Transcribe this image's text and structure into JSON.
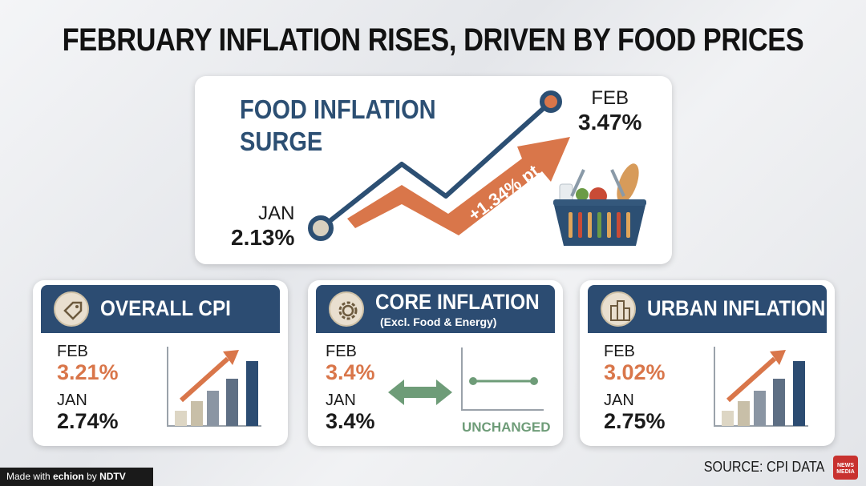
{
  "title": "FEBRUARY INFLATION RISES, DRIVEN BY FOOD PRICES",
  "food": {
    "title_line1": "FOOD INFLATION",
    "title_line2": "SURGE",
    "jan_label": "JAN",
    "jan_value": "2.13%",
    "feb_label": "FEB",
    "feb_value": "3.47%",
    "change": "+1.34% pt",
    "icon": "grocery-basket-icon"
  },
  "cards": [
    {
      "title": "OVERALL CPI",
      "icon": "price-tag-icon",
      "feb_label": "FEB",
      "feb_value": "3.21%",
      "jan_label": "JAN",
      "jan_value": "2.74%"
    },
    {
      "title": "CORE INFLATION",
      "subtitle": "(Excl. Food & Energy)",
      "icon": "gear-icon",
      "feb_label": "FEB",
      "feb_value": "3.4%",
      "jan_label": "JAN",
      "jan_value": "3.4%",
      "status": "UNCHANGED"
    },
    {
      "title": "URBAN INFLATION",
      "icon": "city-buildings-icon",
      "feb_label": "FEB",
      "feb_value": "3.02%",
      "jan_label": "JAN",
      "jan_value": "2.75%"
    }
  ],
  "source": "SOURCE: CPI DATA",
  "badge": {
    "line1": "NEWS",
    "line2": "MEDIA"
  },
  "footer": {
    "made_with": "Made with",
    "brand": "echion",
    "by": "by",
    "partner": "NDTV"
  },
  "colors": {
    "navy": "#2c4c72",
    "orange": "#d9764a",
    "green": "#6e9c78"
  }
}
